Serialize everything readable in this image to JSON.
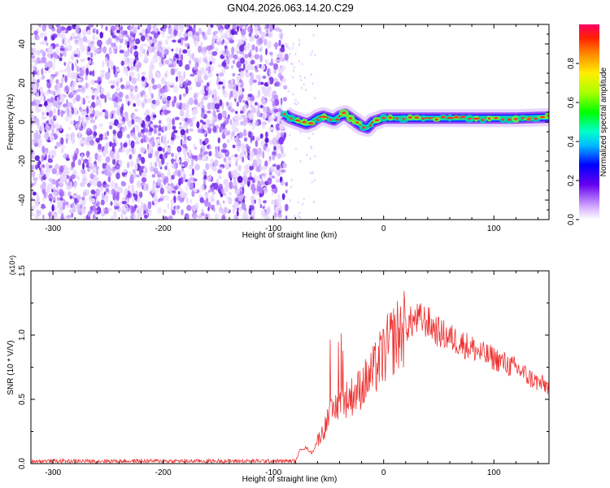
{
  "title": "GN04.2026.063.14.20.C29",
  "chart_data": [
    {
      "type": "heatmap",
      "xlabel": "Height of straight line (km)",
      "ylabel": "Frequency (Hz)",
      "xlim": [
        -320,
        150
      ],
      "ylim": [
        -50,
        50
      ],
      "xticks": [
        -300,
        -200,
        -100,
        0,
        100
      ],
      "yticks": [
        -40,
        -20,
        0,
        20,
        40
      ],
      "colorbar": {
        "label": "Normalized spectral amplitude",
        "range": [
          0,
          1
        ],
        "ticks": [
          "0.0",
          "0.2",
          "0.4",
          "0.6",
          "0.8"
        ],
        "tick_values": [
          0,
          0.2,
          0.4,
          0.6,
          0.8
        ]
      },
      "noise_region_x": [
        -320,
        -88
      ],
      "ridge": {
        "x": [
          -90,
          -85,
          -80,
          -75,
          -70,
          -65,
          -60,
          -55,
          -50,
          -45,
          -40,
          -35,
          -30,
          -25,
          -20,
          -15,
          -10,
          -5,
          0,
          10,
          20,
          40,
          60,
          80,
          100,
          120,
          150
        ],
        "y": [
          4,
          2,
          1,
          0,
          -1,
          0,
          2,
          3,
          2,
          1,
          3,
          4,
          2,
          0,
          -2,
          -3,
          0,
          1,
          2,
          2,
          2,
          2,
          2,
          2,
          2,
          2,
          2.5
        ]
      }
    },
    {
      "type": "line",
      "xlabel": "Height of straight line (km)",
      "ylabel": "SNR (10 * V/V)",
      "scale_label": "(x10⁴)",
      "xlim": [
        -320,
        150
      ],
      "ylim": [
        0,
        1.5
      ],
      "xticks": [
        -300,
        -200,
        -100,
        0,
        100
      ],
      "yticks": [
        "0.0",
        "0.5",
        "1.0",
        "1.5"
      ],
      "ytick_values": [
        0,
        0.5,
        1.0,
        1.5
      ],
      "color": "#ee3333",
      "series": [
        {
          "x": [
            -320,
            -300,
            -250,
            -200,
            -150,
            -100,
            -80,
            -75,
            -70,
            -65,
            -60,
            -55,
            -50,
            -45,
            -40,
            -35,
            -30,
            -25,
            -20,
            -15,
            -10,
            -5,
            0,
            5,
            10,
            15,
            20,
            25,
            30,
            35,
            40,
            45,
            50,
            60,
            70,
            80,
            90,
            100,
            110,
            120,
            125,
            130,
            140,
            150
          ],
          "values": [
            0.02,
            0.02,
            0.02,
            0.02,
            0.02,
            0.02,
            0.02,
            0.12,
            0.12,
            0.08,
            0.18,
            0.25,
            0.35,
            0.42,
            0.48,
            0.5,
            0.52,
            0.55,
            0.6,
            0.65,
            0.7,
            0.78,
            0.85,
            0.92,
            0.98,
            1.02,
            1.06,
            1.1,
            1.12,
            1.12,
            1.1,
            1.06,
            1.02,
            0.98,
            0.94,
            0.9,
            0.85,
            0.82,
            0.78,
            0.74,
            0.72,
            0.68,
            0.63,
            0.6
          ]
        }
      ]
    }
  ]
}
